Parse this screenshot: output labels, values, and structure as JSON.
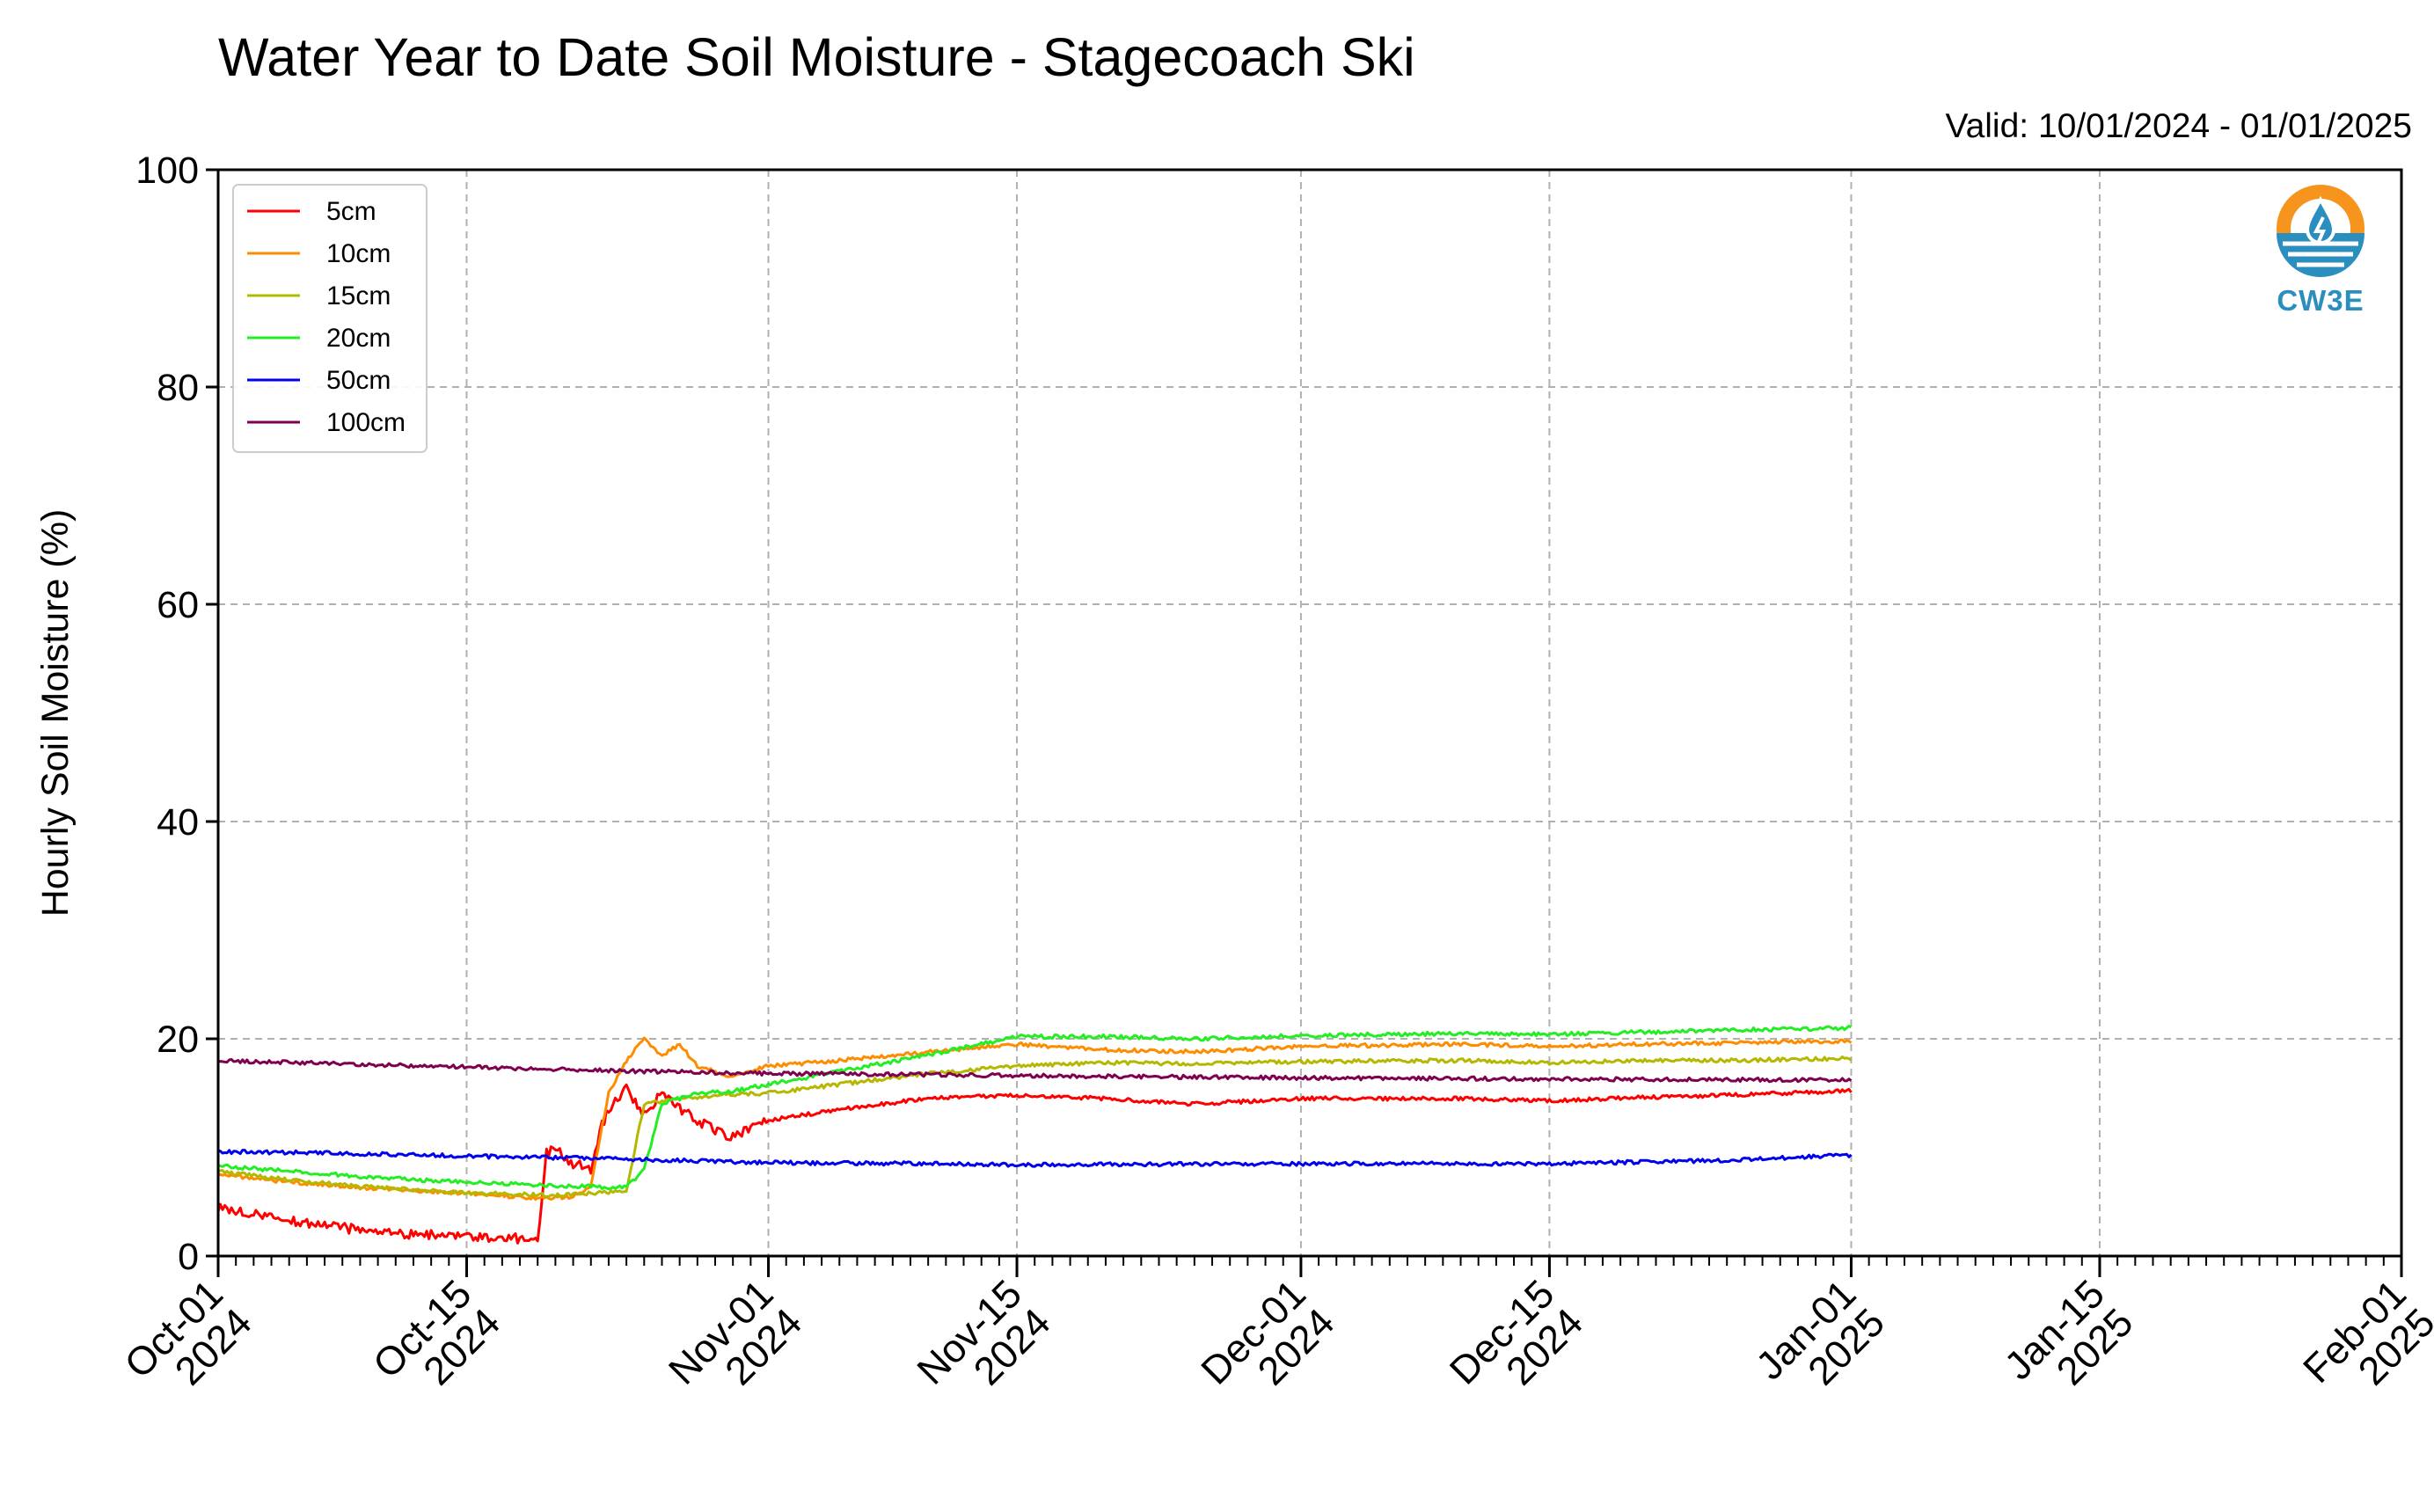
{
  "chart_data": {
    "type": "line",
    "title": "Water Year to Date Soil Moisture - Stagecoach Ski",
    "subtitle": "Valid: 10/01/2024 - 01/01/2025",
    "ylabel": "Hourly Soil Moisture (%)",
    "xlabel": "",
    "ylim": [
      0,
      100
    ],
    "xlim": [
      "2024-10-01",
      "2025-02-01"
    ],
    "y_ticks": [
      0,
      20,
      40,
      60,
      80,
      100
    ],
    "x_ticks": [
      {
        "date": "2024-10-01",
        "label": [
          "Oct-01",
          "2024"
        ]
      },
      {
        "date": "2024-10-15",
        "label": [
          "Oct-15",
          "2024"
        ]
      },
      {
        "date": "2024-11-01",
        "label": [
          "Nov-01",
          "2024"
        ]
      },
      {
        "date": "2024-11-15",
        "label": [
          "Nov-15",
          "2024"
        ]
      },
      {
        "date": "2024-12-01",
        "label": [
          "Dec-01",
          "2024"
        ]
      },
      {
        "date": "2024-12-15",
        "label": [
          "Dec-15",
          "2024"
        ]
      },
      {
        "date": "2025-01-01",
        "label": [
          "Jan-01",
          "2025"
        ]
      },
      {
        "date": "2025-01-15",
        "label": [
          "Jan-15",
          "2025"
        ]
      },
      {
        "date": "2025-02-01",
        "label": [
          "Feb-01",
          "2025"
        ]
      }
    ],
    "grid": true,
    "legend_position": "top-left",
    "series": [
      {
        "name": "5cm",
        "color": "#ff0000",
        "points": [
          [
            "2024-10-01",
            4.5
          ],
          [
            "2024-10-03",
            3.8
          ],
          [
            "2024-10-06",
            3.0
          ],
          [
            "2024-10-09",
            2.4
          ],
          [
            "2024-10-12",
            2.0
          ],
          [
            "2024-10-15",
            1.8
          ],
          [
            "2024-10-18",
            1.6
          ],
          [
            "2024-10-19",
            1.5
          ],
          [
            "2024-10-19 12:00",
            9.5
          ],
          [
            "2024-10-20",
            9.8
          ],
          [
            "2024-10-21",
            8.5
          ],
          [
            "2024-10-22",
            8.0
          ],
          [
            "2024-10-22 12:00",
            11.5
          ],
          [
            "2024-10-23",
            13.5
          ],
          [
            "2024-10-24",
            15.5
          ],
          [
            "2024-10-25",
            13.0
          ],
          [
            "2024-10-26",
            15.0
          ],
          [
            "2024-10-27",
            13.5
          ],
          [
            "2024-10-28",
            12.5
          ],
          [
            "2024-10-29",
            11.5
          ],
          [
            "2024-10-30",
            11.0
          ],
          [
            "2024-11-01",
            12.5
          ],
          [
            "2024-11-05",
            13.5
          ],
          [
            "2024-11-10",
            14.5
          ],
          [
            "2024-11-15",
            14.8
          ],
          [
            "2024-11-20",
            14.5
          ],
          [
            "2024-11-25",
            14.0
          ],
          [
            "2024-12-01",
            14.5
          ],
          [
            "2024-12-10",
            14.5
          ],
          [
            "2024-12-15",
            14.3
          ],
          [
            "2024-12-20",
            14.6
          ],
          [
            "2024-12-25",
            14.8
          ],
          [
            "2025-01-01",
            15.2
          ]
        ]
      },
      {
        "name": "10cm",
        "color": "#ff8c00",
        "points": [
          [
            "2024-10-01",
            7.5
          ],
          [
            "2024-10-05",
            6.8
          ],
          [
            "2024-10-10",
            6.2
          ],
          [
            "2024-10-15",
            5.8
          ],
          [
            "2024-10-19",
            5.3
          ],
          [
            "2024-10-21",
            5.5
          ],
          [
            "2024-10-22",
            6.5
          ],
          [
            "2024-10-23",
            15.0
          ],
          [
            "2024-10-24",
            18.0
          ],
          [
            "2024-10-25",
            20.0
          ],
          [
            "2024-10-26",
            18.5
          ],
          [
            "2024-10-27",
            19.5
          ],
          [
            "2024-10-28",
            17.5
          ],
          [
            "2024-10-29",
            17.0
          ],
          [
            "2024-10-30",
            16.5
          ],
          [
            "2024-11-01",
            17.5
          ],
          [
            "2024-11-05",
            18.0
          ],
          [
            "2024-11-10",
            18.8
          ],
          [
            "2024-11-15",
            19.5
          ],
          [
            "2024-11-20",
            19.0
          ],
          [
            "2024-11-25",
            18.8
          ],
          [
            "2024-12-01",
            19.3
          ],
          [
            "2024-12-10",
            19.5
          ],
          [
            "2024-12-15",
            19.3
          ],
          [
            "2024-12-20",
            19.5
          ],
          [
            "2024-12-25",
            19.6
          ],
          [
            "2025-01-01",
            19.8
          ]
        ]
      },
      {
        "name": "15cm",
        "color": "#b5b800",
        "points": [
          [
            "2024-10-01",
            7.8
          ],
          [
            "2024-10-05",
            7.0
          ],
          [
            "2024-10-10",
            6.3
          ],
          [
            "2024-10-15",
            5.8
          ],
          [
            "2024-10-20",
            5.6
          ],
          [
            "2024-10-22",
            5.8
          ],
          [
            "2024-10-24",
            6.0
          ],
          [
            "2024-10-25",
            14.0
          ],
          [
            "2024-10-27",
            14.5
          ],
          [
            "2024-10-29",
            14.8
          ],
          [
            "2024-11-01",
            15.0
          ],
          [
            "2024-11-05",
            15.8
          ],
          [
            "2024-11-10",
            16.8
          ],
          [
            "2024-11-15",
            17.5
          ],
          [
            "2024-11-20",
            17.8
          ],
          [
            "2024-11-25",
            17.7
          ],
          [
            "2024-12-01",
            17.9
          ],
          [
            "2024-12-10",
            18.0
          ],
          [
            "2024-12-15",
            17.8
          ],
          [
            "2024-12-20",
            18.0
          ],
          [
            "2024-12-25",
            18.0
          ],
          [
            "2025-01-01",
            18.2
          ]
        ]
      },
      {
        "name": "20cm",
        "color": "#22ee22",
        "points": [
          [
            "2024-10-01",
            8.3
          ],
          [
            "2024-10-05",
            7.8
          ],
          [
            "2024-10-10",
            7.2
          ],
          [
            "2024-10-15",
            6.8
          ],
          [
            "2024-10-20",
            6.5
          ],
          [
            "2024-10-24",
            6.3
          ],
          [
            "2024-10-25",
            8.0
          ],
          [
            "2024-10-26",
            14.0
          ],
          [
            "2024-10-28",
            15.0
          ],
          [
            "2024-10-30",
            15.2
          ],
          [
            "2024-11-01",
            15.8
          ],
          [
            "2024-11-05",
            17.0
          ],
          [
            "2024-11-10",
            18.5
          ],
          [
            "2024-11-15",
            20.2
          ],
          [
            "2024-11-20",
            20.2
          ],
          [
            "2024-11-25",
            20.0
          ],
          [
            "2024-12-01",
            20.3
          ],
          [
            "2024-12-10",
            20.5
          ],
          [
            "2024-12-15",
            20.4
          ],
          [
            "2024-12-20",
            20.6
          ],
          [
            "2024-12-25",
            20.8
          ],
          [
            "2025-01-01",
            21.0
          ]
        ]
      },
      {
        "name": "50cm",
        "color": "#0000ee",
        "points": [
          [
            "2024-10-01",
            9.6
          ],
          [
            "2024-10-07",
            9.5
          ],
          [
            "2024-10-15",
            9.2
          ],
          [
            "2024-10-22",
            9.0
          ],
          [
            "2024-11-01",
            8.6
          ],
          [
            "2024-11-10",
            8.5
          ],
          [
            "2024-11-15",
            8.4
          ],
          [
            "2024-12-01",
            8.5
          ],
          [
            "2024-12-15",
            8.5
          ],
          [
            "2024-12-25",
            8.8
          ],
          [
            "2025-01-01",
            9.3
          ]
        ]
      },
      {
        "name": "100cm",
        "color": "#800050",
        "points": [
          [
            "2024-10-01",
            18.0
          ],
          [
            "2024-10-08",
            17.7
          ],
          [
            "2024-10-15",
            17.4
          ],
          [
            "2024-10-22",
            17.1
          ],
          [
            "2024-11-01",
            16.8
          ],
          [
            "2024-11-10",
            16.7
          ],
          [
            "2024-11-15",
            16.6
          ],
          [
            "2024-12-01",
            16.4
          ],
          [
            "2024-12-15",
            16.3
          ],
          [
            "2025-01-01",
            16.2
          ]
        ]
      }
    ]
  },
  "logo": {
    "text": "CW3E",
    "icon": "cw3e-water-drop-logo-icon",
    "color": "#2a8fbf"
  }
}
